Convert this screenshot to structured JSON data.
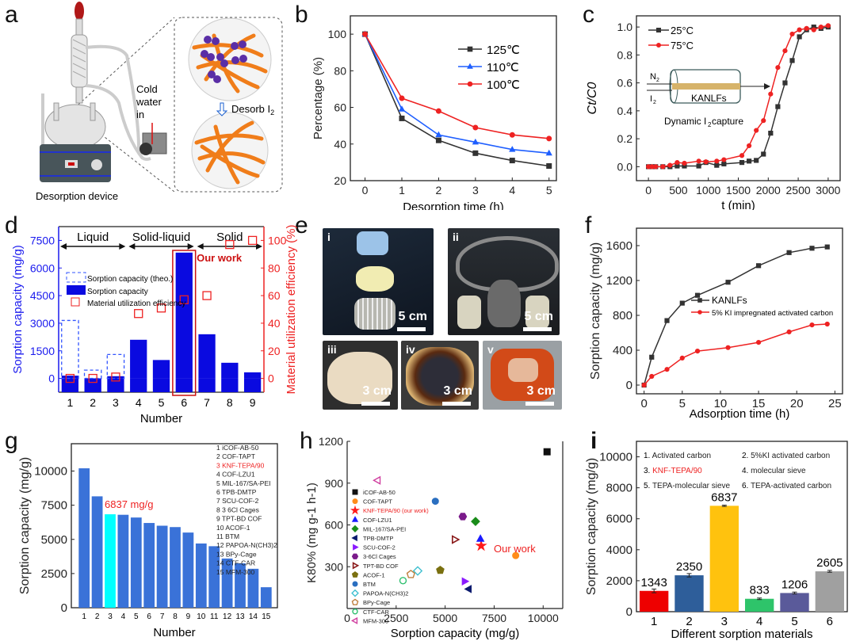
{
  "panel_labels": {
    "a": "a",
    "b": "b",
    "c": "c",
    "d": "d",
    "e": "e",
    "f": "f",
    "g": "g",
    "h": "h",
    "i": "i"
  },
  "panel_a": {
    "device_label": "Desorption device",
    "cold_water_label": [
      "Cold",
      "water",
      "in"
    ],
    "desorb_label": "Desorb I",
    "desorb_sub": "2"
  },
  "panel_e": {
    "photos": [
      {
        "tag": "i",
        "scale": "5 cm"
      },
      {
        "tag": "ii",
        "scale": "5 cm"
      },
      {
        "tag": "iii",
        "scale": "3 cm"
      },
      {
        "tag": "iv",
        "scale": "3 cm"
      },
      {
        "tag": "v",
        "scale": "3 cm"
      }
    ]
  },
  "chart_data": [
    {
      "id": "b",
      "type": "line",
      "xlabel": "Desorption time (h)",
      "ylabel": "Percentage (%)",
      "xlim": [
        -0.4,
        5.2
      ],
      "ylim": [
        20,
        110
      ],
      "xticks": [
        0,
        1,
        2,
        3,
        4,
        5
      ],
      "yticks": [
        20,
        40,
        60,
        80,
        100
      ],
      "legend_position": "top-right",
      "x": [
        0,
        1,
        2,
        3,
        4,
        5
      ],
      "series": [
        {
          "name": "125℃",
          "color": "#333333",
          "marker": "square",
          "values": [
            100,
            54,
            42,
            35,
            31,
            28
          ]
        },
        {
          "name": "110℃",
          "color": "#1f5fff",
          "marker": "triangle",
          "values": [
            100,
            59,
            45,
            41,
            37,
            35
          ]
        },
        {
          "name": "100℃",
          "color": "#ee2222",
          "marker": "circle",
          "values": [
            100,
            65,
            58,
            49,
            45,
            43
          ]
        }
      ]
    },
    {
      "id": "c",
      "type": "line",
      "xlabel": "t (min)",
      "ylabel": "Ct/C0",
      "xlim": [
        -200,
        3200
      ],
      "ylim": [
        -0.1,
        1.08
      ],
      "xticks": [
        0,
        500,
        1000,
        1500,
        2000,
        2500,
        3000
      ],
      "yticks": [
        0.0,
        0.2,
        0.4,
        0.6,
        0.8,
        1.0
      ],
      "ytick_labels": [
        "0.0",
        "0.2",
        "0.4",
        "0.6",
        "0.8",
        "1.0"
      ],
      "legend_position": "top-left",
      "inset": {
        "gas1": "N",
        "gas1_sub": "2",
        "gas2": "I",
        "gas2_sub": "2",
        "material": "KANLFs",
        "caption": "Dynamic I",
        "caption_sub": "2",
        "caption_tail": " capture"
      },
      "series": [
        {
          "name": "25°C",
          "color": "#333333",
          "marker": "square",
          "x": [
            0,
            60,
            120,
            240,
            360,
            480,
            600,
            840,
            960,
            1140,
            1260,
            1560,
            1680,
            1800,
            1920,
            2040,
            2160,
            2280,
            2400,
            2520,
            2640,
            2760,
            2880,
            3000
          ],
          "values": [
            0,
            0,
            0,
            0,
            0,
            0.005,
            0.005,
            0.005,
            0.03,
            0.01,
            0.02,
            0.03,
            0.04,
            0.045,
            0.09,
            0.24,
            0.43,
            0.6,
            0.76,
            0.93,
            0.98,
            1.0,
            0.99,
            1.0
          ]
        },
        {
          "name": "75°C",
          "color": "#ee2222",
          "marker": "circle",
          "x": [
            0,
            60,
            120,
            240,
            360,
            480,
            600,
            840,
            960,
            1140,
            1260,
            1560,
            1680,
            1800,
            1920,
            2040,
            2160,
            2280,
            2400,
            2520,
            2640,
            2760,
            2880,
            3000
          ],
          "values": [
            0,
            0,
            0,
            0,
            0.01,
            0.03,
            0.025,
            0.04,
            0.035,
            0.04,
            0.05,
            0.08,
            0.15,
            0.26,
            0.33,
            0.52,
            0.71,
            0.83,
            0.95,
            0.98,
            0.99,
            0.98,
            1.0,
            1.01
          ]
        }
      ]
    },
    {
      "id": "d",
      "type": "bar",
      "xlabel": "Number",
      "ylabel": "Sorption capacity (mg/g)",
      "ylabel_right": "Material utilization efficiency (%)",
      "categories": [
        "1",
        "2",
        "3",
        "4",
        "5",
        "6",
        "7",
        "8",
        "9"
      ],
      "ylim": [
        -750,
        8250
      ],
      "yticks": [
        0,
        1500,
        3000,
        4500,
        6000,
        7500
      ],
      "ylim_right": [
        -10,
        110
      ],
      "yticks_right": [
        0,
        20,
        40,
        60,
        80,
        100
      ],
      "regions": [
        {
          "label": "Liquid",
          "from": 1,
          "to": 3
        },
        {
          "label": "Solid-liquid",
          "from": 4,
          "to": 6
        },
        {
          "label": "Solid",
          "from": 7,
          "to": 9
        }
      ],
      "highlight": {
        "index": 6,
        "label": "Our work"
      },
      "legend_position": "left",
      "series": [
        {
          "name": "Sorption capacity (theo.)",
          "style": "dashed-bar",
          "color": "#3355ff",
          "values": [
            3150,
            450,
            1300,
            null,
            null,
            null,
            null,
            null,
            null
          ]
        },
        {
          "name": "Sorption capacity",
          "style": "bar",
          "color": "#0a0ae0",
          "values": [
            150,
            0,
            120,
            2100,
            1000,
            6837,
            2400,
            850,
            330
          ]
        },
        {
          "name": "Material utilization efficiency",
          "style": "square-marker",
          "axis": "right",
          "color": "#ee2222",
          "values": [
            0,
            0,
            1,
            47,
            51,
            57,
            60,
            97,
            100
          ]
        }
      ]
    },
    {
      "id": "f",
      "type": "line",
      "xlabel": "Adsorption time (h)",
      "ylabel": "Sorption capacity (mg/g)",
      "xlim": [
        -1,
        26
      ],
      "ylim": [
        -100,
        1800
      ],
      "xticks": [
        0,
        5,
        10,
        15,
        20,
        25
      ],
      "yticks": [
        0,
        400,
        800,
        1200,
        1600
      ],
      "legend_position": "center",
      "series": [
        {
          "name": "KANLFs",
          "color": "#333333",
          "marker": "square",
          "x": [
            0,
            1,
            3,
            5,
            7,
            11,
            15,
            19,
            22,
            24
          ],
          "values": [
            0,
            320,
            740,
            940,
            1030,
            1180,
            1370,
            1520,
            1570,
            1585
          ]
        },
        {
          "name": "5% KI impregnated activated carbon",
          "color": "#ee2222",
          "marker": "circle",
          "x": [
            0,
            1,
            3,
            5,
            7,
            11,
            15,
            19,
            22,
            24
          ],
          "values": [
            0,
            100,
            180,
            310,
            390,
            430,
            490,
            610,
            690,
            700
          ]
        }
      ]
    },
    {
      "id": "g",
      "type": "bar",
      "xlabel": "Number",
      "ylabel": "Sorption capacity (mg/g)",
      "ylim": [
        0,
        12000
      ],
      "yticks": [
        0,
        2500,
        5000,
        7500,
        10000
      ],
      "categories": [
        "1",
        "2",
        "3",
        "4",
        "5",
        "6",
        "7",
        "8",
        "9",
        "10",
        "11",
        "12",
        "13",
        "14",
        "15"
      ],
      "values": [
        10200,
        8150,
        6837,
        6800,
        6600,
        6200,
        6000,
        5900,
        5500,
        4700,
        4500,
        3600,
        3250,
        2850,
        1500
      ],
      "highlight_index": 3,
      "annotation": "6837 mg/g",
      "bar_color": "#3a72d8",
      "highlight_color": "#00ffff",
      "legend_position": "top-right",
      "legend": [
        {
          "num": "1",
          "name": "iCOF-AB-50"
        },
        {
          "num": "2",
          "name": "COF-TAPT"
        },
        {
          "num": "3",
          "name": "KNF-TEPA/90",
          "highlight": true
        },
        {
          "num": "4",
          "name": "COF-LZU1"
        },
        {
          "num": "5",
          "name": "MIL-167/SA-PEI"
        },
        {
          "num": "6",
          "name": "TPB-DMTP"
        },
        {
          "num": "7",
          "name": "SCU-COF-2"
        },
        {
          "num": "8",
          "name": "3 6Cl Cages"
        },
        {
          "num": "9",
          "name": "TPT-BD COF"
        },
        {
          "num": "10",
          "name": "ACOF-1"
        },
        {
          "num": "11",
          "name": "BTM"
        },
        {
          "num": "12",
          "name": "PAPOA-N(CH3)2"
        },
        {
          "num": "13",
          "name": "BPy-Cage"
        },
        {
          "num": "14",
          "name": "CTF-CAR"
        },
        {
          "num": "15",
          "name": "MFM-300"
        }
      ]
    },
    {
      "id": "h",
      "type": "scatter",
      "xlabel": "Sorption capacity (mg/g)",
      "ylabel": "K80% (mg g-1 h-1)",
      "xlim": [
        0,
        11000
      ],
      "ylim": [
        0,
        1200
      ],
      "xticks": [
        0,
        2500,
        5000,
        7500,
        10000
      ],
      "yticks": [
        300,
        600,
        900,
        1200
      ],
      "annotation": "Our work",
      "legend_position": "left",
      "points": [
        {
          "name": "iCOF-AB-50",
          "x": 10200,
          "y": 1125,
          "color": "#111111",
          "marker": "square"
        },
        {
          "name": "COF-TAPT",
          "x": 8600,
          "y": 380,
          "color": "#ff8c1a",
          "marker": "circle"
        },
        {
          "name": "KNF-TEPA/90 (our work)",
          "x": 6837,
          "y": 450,
          "color": "#ff1a1a",
          "marker": "star",
          "highlight": true
        },
        {
          "name": "COF-LZU1",
          "x": 6800,
          "y": 500,
          "color": "#1a1aff",
          "marker": "triangle-up"
        },
        {
          "name": "MIL-167/SA-PEI",
          "x": 6550,
          "y": 625,
          "color": "#1a8c1a",
          "marker": "diamond"
        },
        {
          "name": "TPB-DMTP",
          "x": 6200,
          "y": 140,
          "color": "#0a1a6e",
          "marker": "triangle-left"
        },
        {
          "name": "SCU-COF-2",
          "x": 6000,
          "y": 195,
          "color": "#8a1aff",
          "marker": "triangle-right"
        },
        {
          "name": "3-6Cl Cages",
          "x": 5900,
          "y": 660,
          "color": "#7a1a8a",
          "marker": "hexagon"
        },
        {
          "name": "TPT-BD COF",
          "x": 5500,
          "y": 495,
          "color": "#8a1a1a",
          "marker": "triangle-right-half"
        },
        {
          "name": "ACOF-1",
          "x": 4750,
          "y": 275,
          "color": "#7a7010",
          "marker": "pentagon"
        },
        {
          "name": "BTM",
          "x": 4500,
          "y": 770,
          "color": "#2a6fc0",
          "marker": "sphere"
        },
        {
          "name": "PAPOA-N(CH3)2",
          "x": 3600,
          "y": 270,
          "color": "#40c0d0",
          "marker": "diamond-open"
        },
        {
          "name": "BPy-Cage",
          "x": 3250,
          "y": 245,
          "color": "#c08040",
          "marker": "pentagon-open"
        },
        {
          "name": "CTF-CAR",
          "x": 2850,
          "y": 200,
          "color": "#30c070",
          "marker": "circle-cross"
        },
        {
          "name": "MFM-300",
          "x": 1550,
          "y": 920,
          "color": "#d040a0",
          "marker": "triangle-left-open"
        }
      ]
    },
    {
      "id": "i",
      "type": "bar",
      "xlabel": "Different sorption materials",
      "ylabel": "Sorption capacity (mg/g)",
      "ylim": [
        0,
        11000
      ],
      "yticks": [
        0,
        2000,
        4000,
        6000,
        8000,
        10000
      ],
      "categories": [
        "1",
        "2",
        "3",
        "4",
        "5",
        "6"
      ],
      "values": [
        1343,
        2350,
        6837,
        833,
        1206,
        2605
      ],
      "errors": [
        120,
        110,
        40,
        50,
        60,
        60
      ],
      "colors": [
        "#ee0000",
        "#2e5e9a",
        "#ffc20e",
        "#2ec46a",
        "#5a5a9a",
        "#a0a0a0"
      ],
      "legend_position": "top",
      "legend": [
        {
          "num": "1.",
          "name": "Activated carbon"
        },
        {
          "num": "2.",
          "name": "5%KI activated carbon"
        },
        {
          "num": "3.",
          "name": "KNF-TEPA/90",
          "highlight": true
        },
        {
          "num": "4.",
          "name": "molecular sieve"
        },
        {
          "num": "5.",
          "name": "TEPA-molecular sieve"
        },
        {
          "num": "6.",
          "name": "TEPA-activated carbon"
        }
      ]
    }
  ]
}
